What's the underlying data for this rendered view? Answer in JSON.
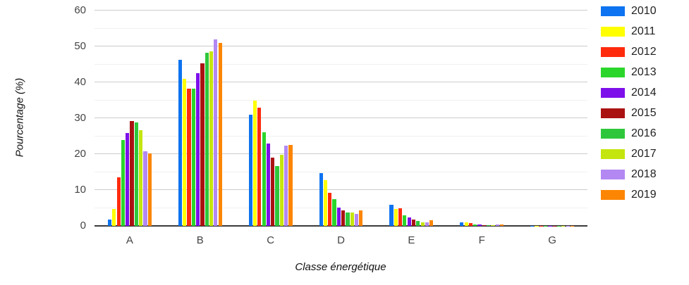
{
  "chart_data": {
    "type": "bar",
    "title": "",
    "xlabel": "Classe énergétique",
    "ylabel": "Pourcentage (%)",
    "categories": [
      "A",
      "B",
      "C",
      "D",
      "E",
      "F",
      "G"
    ],
    "series": [
      {
        "name": "2010",
        "color": "#0d73f0",
        "values": [
          1.8,
          46.2,
          31.0,
          14.8,
          5.9,
          1.0,
          0.1
        ]
      },
      {
        "name": "2011",
        "color": "#ffff00",
        "values": [
          4.8,
          41.0,
          34.9,
          12.7,
          4.7,
          1.0,
          0.1
        ]
      },
      {
        "name": "2012",
        "color": "#ff2b0d",
        "values": [
          13.6,
          38.2,
          32.9,
          9.2,
          5.0,
          0.7,
          0.1
        ]
      },
      {
        "name": "2013",
        "color": "#2bd62b",
        "values": [
          24.0,
          38.3,
          26.1,
          7.5,
          2.9,
          0.4,
          0.05
        ]
      },
      {
        "name": "2014",
        "color": "#7d10ea",
        "values": [
          25.9,
          42.6,
          22.9,
          5.1,
          2.4,
          0.3,
          0.05
        ]
      },
      {
        "name": "2015",
        "color": "#aa1212",
        "values": [
          29.2,
          45.2,
          19.0,
          4.4,
          1.7,
          0.25,
          0.05
        ]
      },
      {
        "name": "2016",
        "color": "#2ec73b",
        "values": [
          28.9,
          48.3,
          16.7,
          3.7,
          1.4,
          0.2,
          0.05
        ]
      },
      {
        "name": "2017",
        "color": "#c5e50e",
        "values": [
          26.6,
          48.7,
          19.8,
          3.8,
          0.9,
          0.2,
          0.05
        ]
      },
      {
        "name": "2018",
        "color": "#b388f2",
        "values": [
          20.7,
          52.0,
          22.4,
          3.4,
          1.0,
          0.3,
          0.1
        ]
      },
      {
        "name": "2019",
        "color": "#fc8604",
        "values": [
          20.2,
          50.9,
          22.6,
          4.3,
          1.5,
          0.3,
          0.1
        ]
      }
    ],
    "ylim": [
      0,
      60
    ],
    "yticks": [
      0,
      10,
      20,
      30,
      40,
      50,
      60
    ],
    "grid": {
      "major_step": 10,
      "minor_step": 5,
      "major_color": "#cccccc",
      "minor_color": "#f1f1f1"
    },
    "axis_line_color": "#3b3b3b",
    "tick_label_color": "#444444",
    "axis_title_color": "#111111",
    "legend_position": "right"
  }
}
